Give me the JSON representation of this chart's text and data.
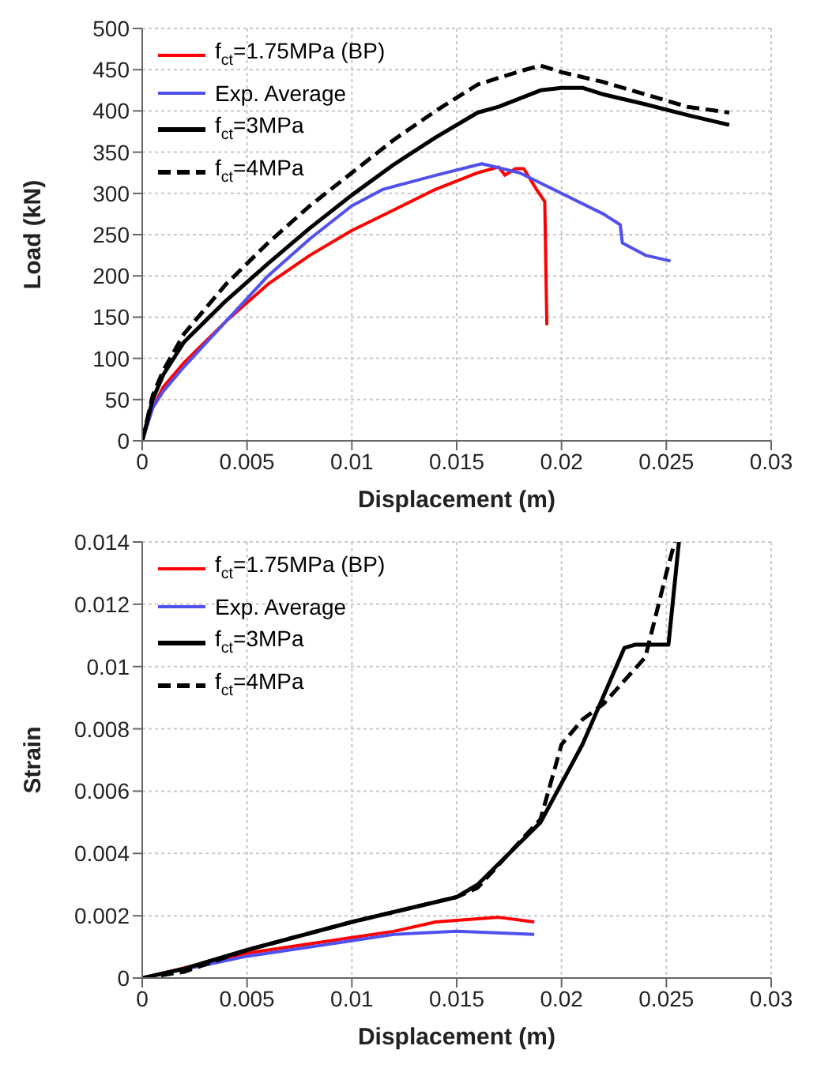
{
  "chart_data": [
    {
      "type": "line",
      "xlabel": "Displacement (m)",
      "ylabel": "Load (kN)",
      "xlim": [
        0,
        0.03
      ],
      "xticks": [
        0,
        0.005,
        0.01,
        0.015,
        0.02,
        0.025,
        0.03
      ],
      "ylim": [
        0,
        500
      ],
      "yticks": [
        0,
        50,
        100,
        150,
        200,
        250,
        300,
        350,
        400,
        450,
        500
      ],
      "grid": true,
      "legend": "top left",
      "marker": "none",
      "series": [
        {
          "name": "f$_{ct}$=1.75MPa (BP)",
          "color": "#ff0000",
          "line_style": "solid",
          "x": [
            0,
            0.0005,
            0.001,
            0.002,
            0.004,
            0.006,
            0.008,
            0.01,
            0.012,
            0.014,
            0.016,
            0.017,
            0.0173,
            0.0178,
            0.0182,
            0.0188,
            0.0192,
            0.0193
          ],
          "values": [
            0,
            40,
            65,
            95,
            145,
            190,
            225,
            255,
            280,
            305,
            325,
            332,
            322,
            330,
            330,
            305,
            290,
            140
          ]
        },
        {
          "name": "Exp. Average",
          "color": "#5050ee",
          "line_style": "solid",
          "x": [
            0,
            0.0005,
            0.001,
            0.002,
            0.004,
            0.006,
            0.008,
            0.01,
            0.0115,
            0.014,
            0.0162,
            0.018,
            0.02,
            0.022,
            0.0228,
            0.0229,
            0.024,
            0.0252
          ],
          "values": [
            0,
            40,
            60,
            90,
            145,
            200,
            245,
            285,
            305,
            322,
            336,
            325,
            300,
            275,
            262,
            240,
            225,
            218
          ]
        },
        {
          "name": "f$_{ct}$=3MPa",
          "color": "#000000",
          "line_style": "solid",
          "x": [
            0,
            0.0005,
            0.001,
            0.002,
            0.004,
            0.006,
            0.008,
            0.01,
            0.012,
            0.014,
            0.016,
            0.017,
            0.019,
            0.02,
            0.021,
            0.022,
            0.024,
            0.026,
            0.028
          ],
          "values": [
            0,
            50,
            80,
            120,
            170,
            215,
            258,
            298,
            335,
            368,
            398,
            405,
            425,
            428,
            428,
            420,
            408,
            395,
            383
          ]
        },
        {
          "name": "f$_{ct}$=4MPa",
          "color": "#000000",
          "line_style": "dashed",
          "x": [
            0,
            0.0005,
            0.001,
            0.002,
            0.004,
            0.006,
            0.008,
            0.01,
            0.012,
            0.014,
            0.016,
            0.018,
            0.019,
            0.02,
            0.022,
            0.024,
            0.026,
            0.028
          ],
          "values": [
            0,
            55,
            85,
            130,
            190,
            240,
            285,
            325,
            365,
            400,
            432,
            448,
            455,
            447,
            435,
            420,
            405,
            398
          ]
        }
      ]
    },
    {
      "type": "line",
      "xlabel": "Displacement (m)",
      "ylabel": "Strain",
      "xlim": [
        0,
        0.03
      ],
      "xticks": [
        0,
        0.005,
        0.01,
        0.015,
        0.02,
        0.025,
        0.03
      ],
      "ylim": [
        0,
        0.014
      ],
      "yticks": [
        0,
        0.002,
        0.004,
        0.006,
        0.008,
        0.01,
        0.012,
        0.014
      ],
      "grid": true,
      "legend": "top left",
      "marker": "none",
      "series": [
        {
          "name": "f$_{ct}$=1.75MPa (BP)",
          "color": "#ff0000",
          "line_style": "solid",
          "x": [
            0,
            0.005,
            0.01,
            0.012,
            0.014,
            0.017,
            0.0187
          ],
          "values": [
            0,
            0.0008,
            0.0013,
            0.0015,
            0.0018,
            0.00195,
            0.0018
          ]
        },
        {
          "name": "Exp. Average",
          "color": "#5050ee",
          "line_style": "solid",
          "x": [
            0,
            0.005,
            0.01,
            0.012,
            0.015,
            0.0187
          ],
          "values": [
            0,
            0.0007,
            0.0012,
            0.0014,
            0.0015,
            0.0014
          ]
        },
        {
          "name": "f$_{ct}$=3MPa",
          "color": "#000000",
          "line_style": "solid",
          "x": [
            0,
            0.002,
            0.005,
            0.01,
            0.015,
            0.016,
            0.019,
            0.021,
            0.023,
            0.0235,
            0.025,
            0.0251,
            0.0256
          ],
          "values": [
            0,
            0.0003,
            0.0009,
            0.0018,
            0.0026,
            0.003,
            0.005,
            0.0075,
            0.0106,
            0.0107,
            0.0107,
            0.0107,
            0.014
          ]
        },
        {
          "name": "f$_{ct}$=4MPa",
          "color": "#000000",
          "line_style": "dashed",
          "x": [
            0,
            0.002,
            0.005,
            0.01,
            0.015,
            0.016,
            0.019,
            0.02,
            0.021,
            0.022,
            0.024,
            0.025,
            0.0254
          ],
          "values": [
            0,
            0.0002,
            0.0009,
            0.0018,
            0.0026,
            0.0029,
            0.0051,
            0.0075,
            0.0083,
            0.0088,
            0.0103,
            0.013,
            0.014
          ]
        }
      ]
    }
  ]
}
